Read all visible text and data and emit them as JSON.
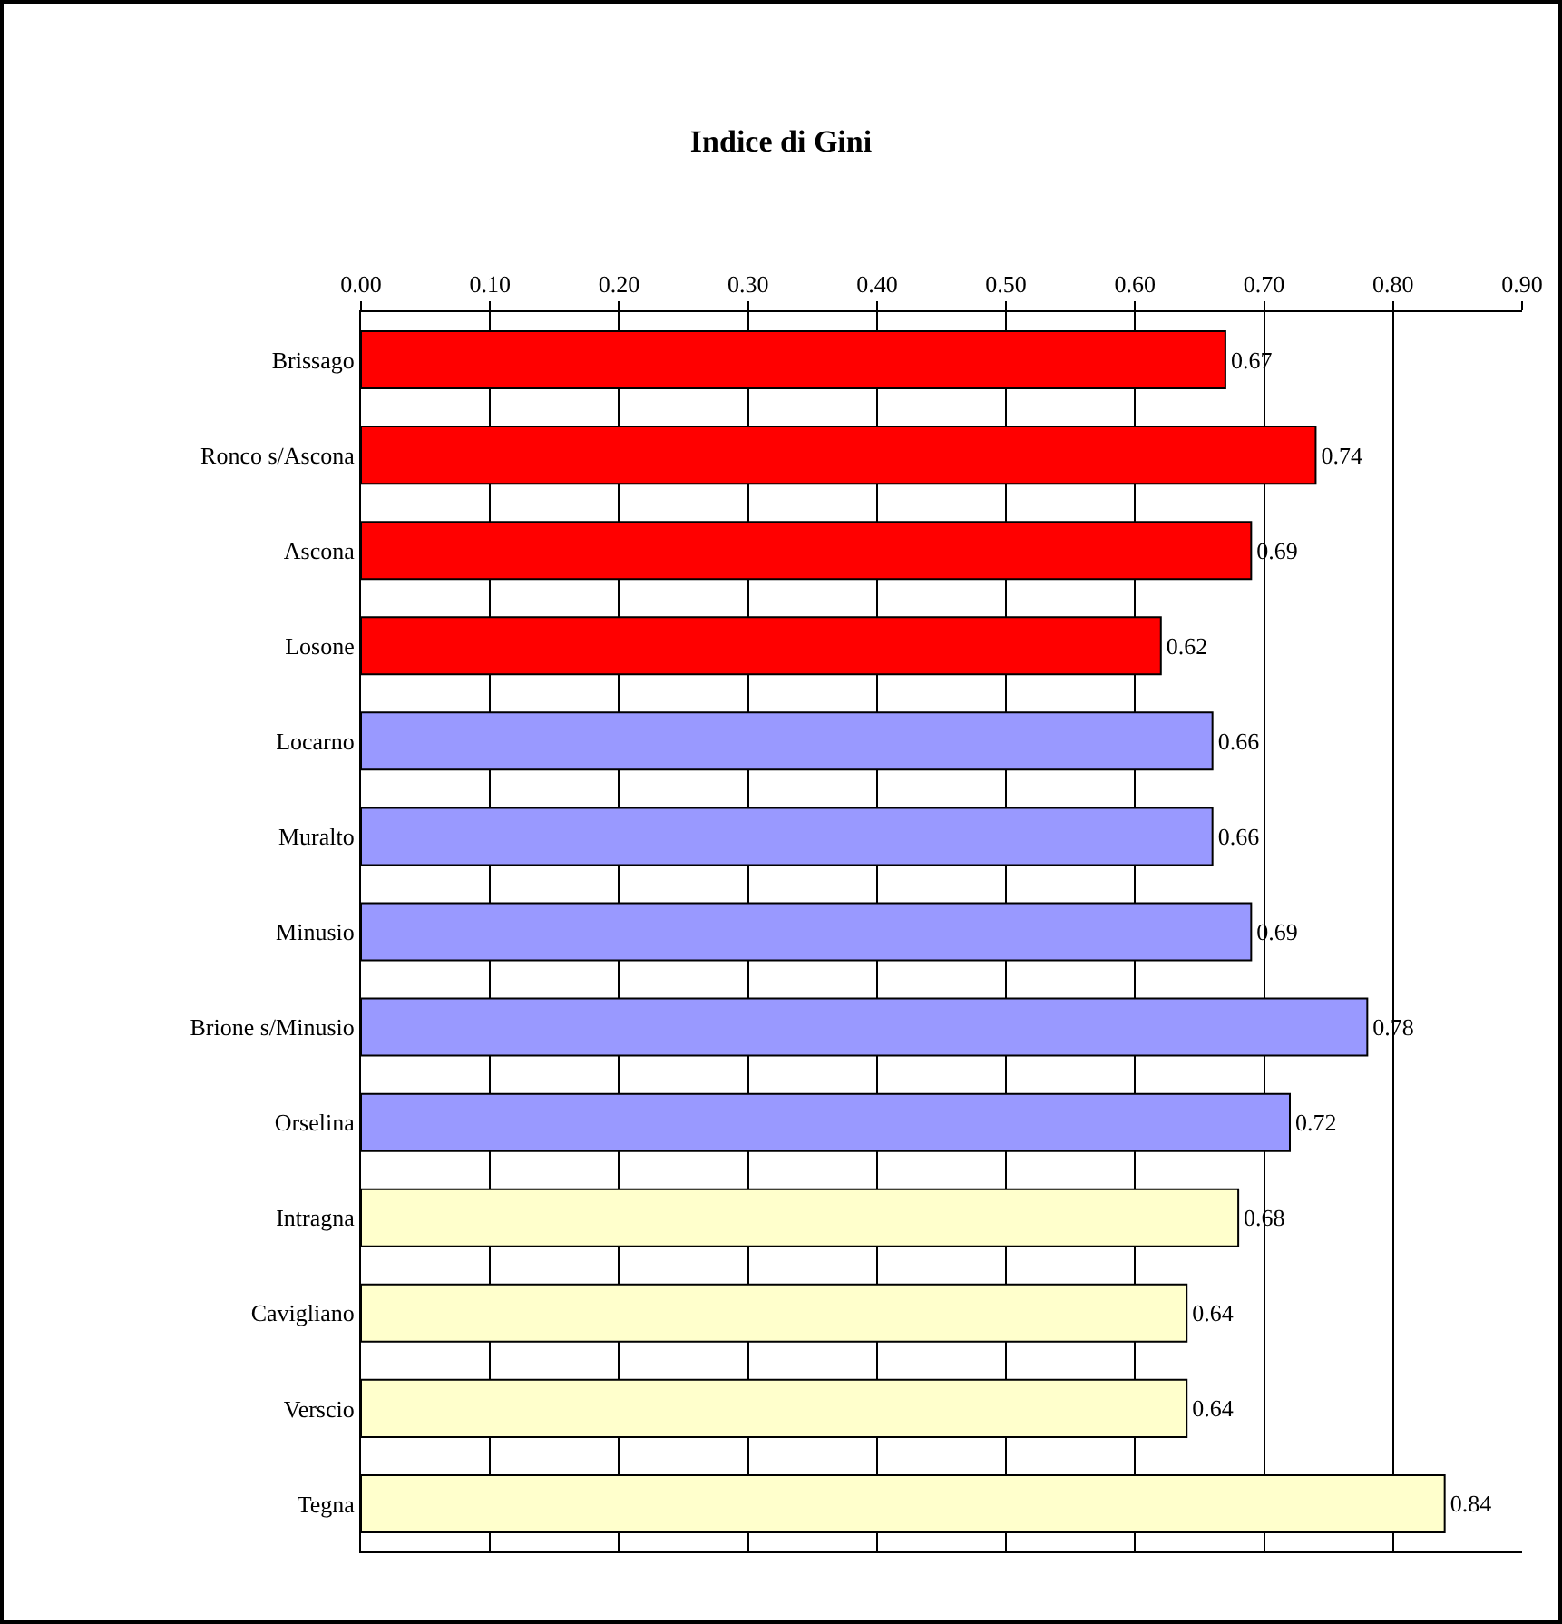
{
  "chart_data": {
    "type": "bar",
    "orientation": "horizontal",
    "title": "Indice di Gini",
    "categories": [
      "Brissago",
      "Ronco s/Ascona",
      "Ascona",
      "Losone",
      "Locarno",
      "Muralto",
      "Minusio",
      "Brione s/Minusio",
      "Orselina",
      "Intragna",
      "Cavigliano",
      "Verscio",
      "Tegna"
    ],
    "values": [
      0.67,
      0.74,
      0.69,
      0.62,
      0.66,
      0.66,
      0.69,
      0.78,
      0.72,
      0.68,
      0.64,
      0.64,
      0.84
    ],
    "colors": [
      "#ff0000",
      "#ff0000",
      "#ff0000",
      "#ff0000",
      "#9999ff",
      "#9999ff",
      "#9999ff",
      "#9999ff",
      "#9999ff",
      "#ffffcc",
      "#ffffcc",
      "#ffffcc",
      "#ffffcc"
    ],
    "xlim": [
      0,
      0.9
    ],
    "xticks": [
      {
        "value": 0,
        "label": "0.00"
      },
      {
        "value": 0.1,
        "label": "0.10"
      },
      {
        "value": 0.2,
        "label": "0.20"
      },
      {
        "value": 0.3,
        "label": "0.30"
      },
      {
        "value": 0.4,
        "label": "0.40"
      },
      {
        "value": 0.5,
        "label": "0.50"
      },
      {
        "value": 0.6,
        "label": "0.60"
      },
      {
        "value": 0.7,
        "label": "0.70"
      },
      {
        "value": 0.8,
        "label": "0.80"
      },
      {
        "value": 0.9,
        "label": "0.90"
      }
    ],
    "grid": "x",
    "data_labels": true,
    "legend": false
  }
}
